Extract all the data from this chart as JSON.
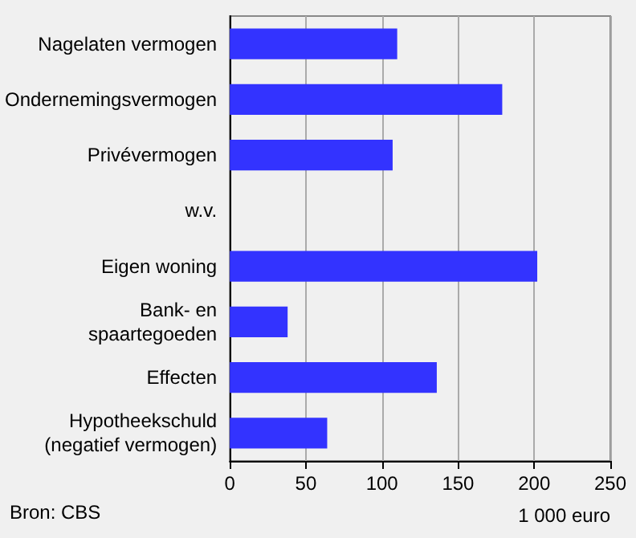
{
  "chart_data": {
    "type": "bar",
    "orientation": "horizontal",
    "xlabel": "1 000 euro",
    "annotations": [
      "Bron: CBS"
    ],
    "categories": [
      "Nagelaten vermogen",
      "Ondernemingsvermogen",
      "Privévermogen",
      "w.v.",
      "Eigen woning",
      "Bank- en\nspaartegoeden",
      "Effecten",
      "Hypotheekschuld\n(negatief vermogen)"
    ],
    "values": [
      110,
      179,
      107,
      null,
      202,
      38,
      136,
      64
    ],
    "color": "#3333ff",
    "xlim": [
      0,
      250
    ],
    "xticks": [
      0,
      50,
      100,
      150,
      200,
      250
    ],
    "grid": "x"
  }
}
